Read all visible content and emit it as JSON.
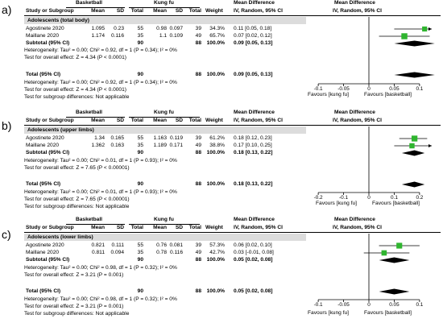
{
  "colors": {
    "square": "#2fb52f",
    "diamond": "#000000",
    "subgroup_band": "#dcdcdc"
  },
  "panels": [
    {
      "label": "a)",
      "group1": "Basketball",
      "group2": "Kung fu",
      "header": {
        "study": "Study or Subgroup",
        "mean": "Mean",
        "sd": "SD",
        "total": "Total",
        "mean2": "Mean",
        "sd2": "SD",
        "total2": "Total",
        "weight": "Weight",
        "md": "Mean Difference",
        "md_sub": "IV, Random, 95% CI",
        "md2": "Mean Difference",
        "md2_sub": "IV, Random, 95% CI"
      },
      "subgroup": "Adolescents (total body)",
      "rows": [
        {
          "study": "Agostinete 2020",
          "m1": "1.095",
          "sd1": "0.23",
          "n1": "55",
          "m2": "0.98",
          "sd2": "0.097",
          "n2": "39",
          "weight": "34.3%",
          "ci": "0.11 [0.05, 0.18]"
        },
        {
          "study": "Maillane 2020",
          "m1": "1.174",
          "sd1": "0.116",
          "n1": "35",
          "m2": "1.1",
          "sd2": "0.109",
          "n2": "49",
          "weight": "65.7%",
          "ci": "0.07 [0.02, 0.12]"
        }
      ],
      "subtotal": {
        "label": "Subtotal (95% CI)",
        "n1": "90",
        "n2": "88",
        "weight": "100.0%",
        "ci": "0.09 [0.05, 0.13]"
      },
      "het1": "Heterogeneity: Tau² = 0.00; Chi² = 0.92, df = 1 (P = 0.34); I² = 0%",
      "eff1": "Test for overall effect: Z = 4.34 (P < 0.0001)",
      "total": {
        "label": "Total (95% CI)",
        "n1": "90",
        "n2": "88",
        "weight": "100.0%",
        "ci": "0.09 [0.05, 0.13]"
      },
      "het2": "Heterogeneity: Tau² = 0.00; Chi² = 0.92, df = 1 (P = 0.34); I² = 0%",
      "eff2": "Test for overall effect: Z = 4.34 (P < 0.0001)",
      "subtest": "Test for subgroup differences: Not applicable",
      "ticks": [
        "-0.1",
        "-0.05",
        "0",
        "0.05",
        "0.1"
      ],
      "favour_left": "Favours [kung fu]",
      "favour_right": "Favours [basketball]"
    },
    {
      "label": "b)",
      "group1": "Basketball",
      "group2": "Kung fu",
      "header": {
        "study": "Study or Subgroup",
        "mean": "Mean",
        "sd": "SD",
        "total": "Total",
        "mean2": "Mean",
        "sd2": "SD",
        "total2": "Total",
        "weight": "Weight",
        "md": "Mean Difference",
        "md_sub": "IV, Random, 95% CI",
        "md2": "Mean Difference",
        "md2_sub": "IV, Random, 95% CI"
      },
      "subgroup": "Adolescents (upper limbs)",
      "rows": [
        {
          "study": "Agostinete 2020",
          "m1": "1.34",
          "sd1": "0.165",
          "n1": "55",
          "m2": "1.163",
          "sd2": "0.119",
          "n2": "39",
          "weight": "61.2%",
          "ci": "0.18 [0.12, 0.23]"
        },
        {
          "study": "Maillane 2020",
          "m1": "1.362",
          "sd1": "0.163",
          "n1": "35",
          "m2": "1.189",
          "sd2": "0.171",
          "n2": "49",
          "weight": "38.8%",
          "ci": "0.17 [0.10, 0.25]"
        }
      ],
      "subtotal": {
        "label": "Subtotal (95% CI)",
        "n1": "90",
        "n2": "88",
        "weight": "100.0%",
        "ci": "0.18 [0.13, 0.22]"
      },
      "het1": "Heterogeneity: Tau² = 0.00; Chi² = 0.01, df = 1 (P = 0.93); I² = 0%",
      "eff1": "Test for overall effect: Z = 7.65 (P < 0.00001)",
      "total": {
        "label": "Total (95% CI)",
        "n1": "90",
        "n2": "88",
        "weight": "100.0%",
        "ci": "0.18 [0.13, 0.22]"
      },
      "het2": "Heterogeneity: Tau² = 0.00; Chi² = 0.01, df = 1 (P = 0.93); I² = 0%",
      "eff2": "Test for overall effect: Z = 7.65 (P < 0.00001)",
      "subtest": "Test for subgroup differences: Not applicable",
      "ticks": [
        "-0.2",
        "-0.1",
        "0",
        "0.1",
        "0.2"
      ],
      "favour_left": "Favours [kung fu]",
      "favour_right": "Favours [basketball]"
    },
    {
      "label": "c)",
      "group1": "Basketball",
      "group2": "Kung fu",
      "header": {
        "study": "Study or Subgroup",
        "mean": "Mean",
        "sd": "SD",
        "total": "Total",
        "mean2": "Mean",
        "sd2": "SD",
        "total2": "Total",
        "weight": "Weight",
        "md": "Mean Difference",
        "md_sub": "IV, Random, 95% CI",
        "md2": "Mean Difference",
        "md2_sub": "IV, Random, 95% CI"
      },
      "subgroup": "Adolescents (lower limbs)",
      "rows": [
        {
          "study": "Agostinete 2020",
          "m1": "0.821",
          "sd1": "0.111",
          "n1": "55",
          "m2": "0.76",
          "sd2": "0.081",
          "n2": "39",
          "weight": "57.3%",
          "ci": "0.06 [0.02, 0.10]"
        },
        {
          "study": "Maillane 2020",
          "m1": "0.811",
          "sd1": "0.094",
          "n1": "35",
          "m2": "0.78",
          "sd2": "0.116",
          "n2": "49",
          "weight": "42.7%",
          "ci": "0.03 [-0.01, 0.08]"
        }
      ],
      "subtotal": {
        "label": "Subtotal (95% CI)",
        "n1": "90",
        "n2": "88",
        "weight": "100.0%",
        "ci": "0.05 [0.02, 0.08]"
      },
      "het1": "Heterogeneity: Tau² = 0.00; Chi² = 0.98, df = 1 (P = 0.32); I² = 0%",
      "eff1": "Test for overall effect: Z = 3.21 (P = 0.001)",
      "total": {
        "label": "Total (95% CI)",
        "n1": "90",
        "n2": "88",
        "weight": "100.0%",
        "ci": "0.05 [0.02, 0.08]"
      },
      "het2": "Heterogeneity: Tau² = 0.00; Chi² = 0.98, df = 1 (P = 0.32); I² = 0%",
      "eff2": "Test for overall effect: Z = 3.21 (P = 0.001)",
      "subtest": "Test for subgroup differences: Not applicable",
      "ticks": [
        "-0.1",
        "-0.05",
        "0",
        "0.05",
        "0.1"
      ],
      "favour_left": "Favours [kung fu]",
      "favour_right": "Favours [basketball]"
    }
  ],
  "chart_data": [
    {
      "type": "forest",
      "xlim": [
        -0.1,
        0.1
      ],
      "series": [
        {
          "name": "Agostinete 2020",
          "md": 0.11,
          "lo": 0.05,
          "hi": 0.18,
          "weight": 34.3
        },
        {
          "name": "Maillane 2020",
          "md": 0.07,
          "lo": 0.02,
          "hi": 0.12,
          "weight": 65.7
        }
      ],
      "subtotal": {
        "md": 0.09,
        "lo": 0.05,
        "hi": 0.13
      },
      "total": {
        "md": 0.09,
        "lo": 0.05,
        "hi": 0.13
      }
    },
    {
      "type": "forest",
      "xlim": [
        -0.2,
        0.2
      ],
      "series": [
        {
          "name": "Agostinete 2020",
          "md": 0.18,
          "lo": 0.12,
          "hi": 0.23,
          "weight": 61.2
        },
        {
          "name": "Maillane 2020",
          "md": 0.17,
          "lo": 0.1,
          "hi": 0.25,
          "weight": 38.8
        }
      ],
      "subtotal": {
        "md": 0.18,
        "lo": 0.13,
        "hi": 0.22
      },
      "total": {
        "md": 0.18,
        "lo": 0.13,
        "hi": 0.22
      }
    },
    {
      "type": "forest",
      "xlim": [
        -0.1,
        0.1
      ],
      "series": [
        {
          "name": "Agostinete 2020",
          "md": 0.06,
          "lo": 0.02,
          "hi": 0.1,
          "weight": 57.3
        },
        {
          "name": "Maillane 2020",
          "md": 0.03,
          "lo": -0.01,
          "hi": 0.08,
          "weight": 42.7
        }
      ],
      "subtotal": {
        "md": 0.05,
        "lo": 0.02,
        "hi": 0.08
      },
      "total": {
        "md": 0.05,
        "lo": 0.02,
        "hi": 0.08
      }
    }
  ]
}
